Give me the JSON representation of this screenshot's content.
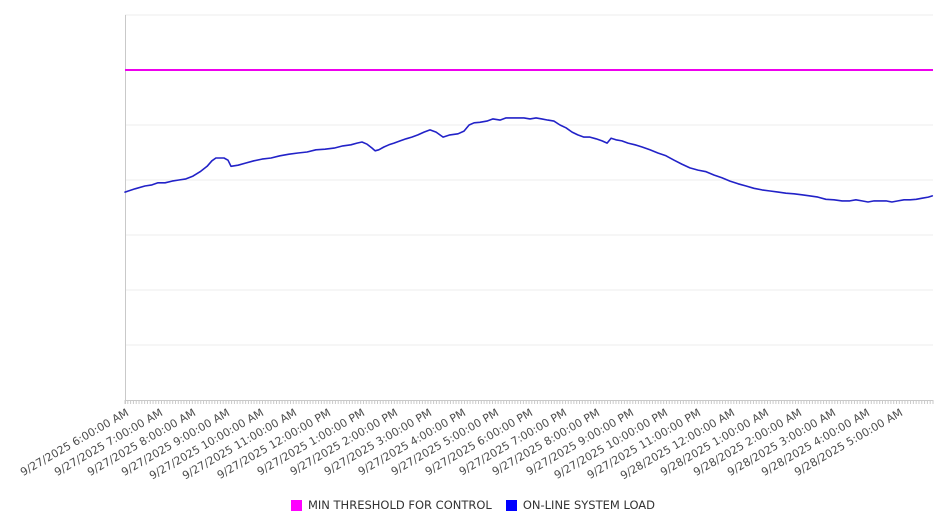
{
  "page": {
    "background": "#ffffff"
  },
  "chart_data": {
    "type": "line",
    "title": "",
    "xlabel": "",
    "ylabel": "",
    "grid": "horizontal",
    "grid_color": "#ededed",
    "axis_color": "#c9c9c9",
    "label_color": "#4d4d4d",
    "legend_position": "bottom-center",
    "y_axis": {
      "tick_labels_visible": false,
      "grid_divisions": 7,
      "range_grid_units": [
        0,
        7
      ]
    },
    "x_axis": {
      "labels_rotation_deg": -30,
      "minor_ticks_per_hour": 12,
      "hours_span": 24,
      "tick_labels": [
        "9/27/2025 6:00:00 AM",
        "9/27/2025 7:00:00 AM",
        "9/27/2025 8:00:00 AM",
        "9/27/2025 9:00:00 AM",
        "9/27/2025 10:00:00 AM",
        "9/27/2025 11:00:00 AM",
        "9/27/2025 12:00:00 PM",
        "9/27/2025 1:00:00 PM",
        "9/27/2025 2:00:00 PM",
        "9/27/2025 3:00:00 PM",
        "9/27/2025 4:00:00 PM",
        "9/27/2025 5:00:00 PM",
        "9/27/2025 6:00:00 PM",
        "9/27/2025 7:00:00 PM",
        "9/27/2025 8:00:00 PM",
        "9/27/2025 9:00:00 PM",
        "9/27/2025 10:00:00 PM",
        "9/27/2025 11:00:00 PM",
        "9/28/2025 12:00:00 AM",
        "9/28/2025 1:00:00 AM",
        "9/28/2025 2:00:00 AM",
        "9/28/2025 3:00:00 AM",
        "9/28/2025 4:00:00 AM",
        "9/28/2025 5:00:00 AM"
      ]
    },
    "series": [
      {
        "name": "MIN THRESHOLD FOR CONTROL",
        "type": "constant-line",
        "color": "#ee00ee",
        "legend_color": "#ff00ff",
        "value_grid_units": 6.0
      },
      {
        "name": "ON-LINE SYSTEM LOAD",
        "type": "line",
        "color": "#2222c8",
        "legend_color": "#0000ff",
        "points_hours_vs_grid_units": [
          [
            0.0,
            3.78
          ],
          [
            0.3,
            3.84
          ],
          [
            0.59,
            3.89
          ],
          [
            0.8,
            3.91
          ],
          [
            0.98,
            3.95
          ],
          [
            1.19,
            3.95
          ],
          [
            1.4,
            3.98
          ],
          [
            1.6,
            4.0
          ],
          [
            1.81,
            4.02
          ],
          [
            2.02,
            4.07
          ],
          [
            2.23,
            4.15
          ],
          [
            2.44,
            4.25
          ],
          [
            2.58,
            4.35
          ],
          [
            2.7,
            4.4
          ],
          [
            2.94,
            4.4
          ],
          [
            3.06,
            4.36
          ],
          [
            3.15,
            4.25
          ],
          [
            3.36,
            4.27
          ],
          [
            3.59,
            4.31
          ],
          [
            3.83,
            4.35
          ],
          [
            4.07,
            4.38
          ],
          [
            4.34,
            4.4
          ],
          [
            4.6,
            4.44
          ],
          [
            4.87,
            4.47
          ],
          [
            5.14,
            4.49
          ],
          [
            5.41,
            4.51
          ],
          [
            5.67,
            4.55
          ],
          [
            5.94,
            4.56
          ],
          [
            6.21,
            4.58
          ],
          [
            6.47,
            4.62
          ],
          [
            6.71,
            4.64
          ],
          [
            6.89,
            4.67
          ],
          [
            7.04,
            4.69
          ],
          [
            7.19,
            4.65
          ],
          [
            7.34,
            4.58
          ],
          [
            7.43,
            4.53
          ],
          [
            7.54,
            4.55
          ],
          [
            7.69,
            4.6
          ],
          [
            7.84,
            4.64
          ],
          [
            7.99,
            4.67
          ],
          [
            8.17,
            4.71
          ],
          [
            8.35,
            4.75
          ],
          [
            8.52,
            4.78
          ],
          [
            8.7,
            4.82
          ],
          [
            8.88,
            4.87
          ],
          [
            9.06,
            4.91
          ],
          [
            9.24,
            4.87
          ],
          [
            9.45,
            4.78
          ],
          [
            9.65,
            4.82
          ],
          [
            9.89,
            4.84
          ],
          [
            10.07,
            4.89
          ],
          [
            10.22,
            5.0
          ],
          [
            10.37,
            5.04
          ],
          [
            10.54,
            5.05
          ],
          [
            10.75,
            5.07
          ],
          [
            10.93,
            5.11
          ],
          [
            11.14,
            5.09
          ],
          [
            11.32,
            5.13
          ],
          [
            11.49,
            5.13
          ],
          [
            11.67,
            5.13
          ],
          [
            11.85,
            5.13
          ],
          [
            12.03,
            5.11
          ],
          [
            12.21,
            5.13
          ],
          [
            12.38,
            5.11
          ],
          [
            12.56,
            5.09
          ],
          [
            12.74,
            5.07
          ],
          [
            12.92,
            5.0
          ],
          [
            13.1,
            4.95
          ],
          [
            13.28,
            4.87
          ],
          [
            13.45,
            4.82
          ],
          [
            13.63,
            4.78
          ],
          [
            13.81,
            4.78
          ],
          [
            13.99,
            4.75
          ],
          [
            14.17,
            4.71
          ],
          [
            14.32,
            4.67
          ],
          [
            14.44,
            4.76
          ],
          [
            14.58,
            4.73
          ],
          [
            14.76,
            4.71
          ],
          [
            14.94,
            4.67
          ],
          [
            15.15,
            4.64
          ],
          [
            15.36,
            4.6
          ],
          [
            15.59,
            4.55
          ],
          [
            15.83,
            4.49
          ],
          [
            16.07,
            4.44
          ],
          [
            16.31,
            4.36
          ],
          [
            16.54,
            4.29
          ],
          [
            16.78,
            4.22
          ],
          [
            17.02,
            4.18
          ],
          [
            17.26,
            4.15
          ],
          [
            17.5,
            4.09
          ],
          [
            17.73,
            4.04
          ],
          [
            17.97,
            3.98
          ],
          [
            18.21,
            3.93
          ],
          [
            18.45,
            3.89
          ],
          [
            18.68,
            3.85
          ],
          [
            18.92,
            3.82
          ],
          [
            19.16,
            3.8
          ],
          [
            19.4,
            3.78
          ],
          [
            19.63,
            3.76
          ],
          [
            19.87,
            3.75
          ],
          [
            20.11,
            3.73
          ],
          [
            20.35,
            3.71
          ],
          [
            20.58,
            3.69
          ],
          [
            20.82,
            3.65
          ],
          [
            21.06,
            3.64
          ],
          [
            21.3,
            3.62
          ],
          [
            21.53,
            3.62
          ],
          [
            21.71,
            3.64
          ],
          [
            21.89,
            3.62
          ],
          [
            22.07,
            3.6
          ],
          [
            22.25,
            3.62
          ],
          [
            22.43,
            3.62
          ],
          [
            22.61,
            3.62
          ],
          [
            22.78,
            3.6
          ],
          [
            22.96,
            3.62
          ],
          [
            23.14,
            3.64
          ],
          [
            23.32,
            3.64
          ],
          [
            23.5,
            3.65
          ],
          [
            23.68,
            3.67
          ],
          [
            23.86,
            3.69
          ],
          [
            23.98,
            3.71
          ]
        ]
      }
    ]
  }
}
